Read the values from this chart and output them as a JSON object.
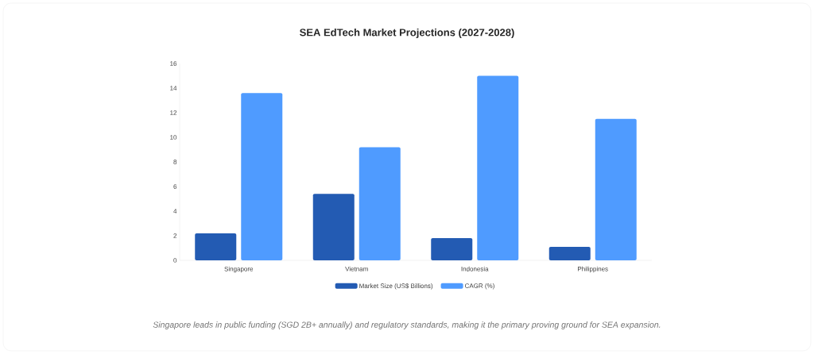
{
  "chart_data": {
    "type": "bar",
    "title": "SEA EdTech Market Projections (2027-2028)",
    "categories": [
      "Singapore",
      "Vietnam",
      "Indonesia",
      "Philippines"
    ],
    "series": [
      {
        "name": "Market Size (US$ Billions)",
        "color": "#235bb3",
        "values": [
          2.2,
          5.4,
          1.8,
          1.1
        ]
      },
      {
        "name": "CAGR (%)",
        "color": "#4f9bff",
        "values": [
          13.6,
          9.2,
          15,
          11.5
        ]
      }
    ],
    "ylim": [
      0,
      16
    ],
    "yticks": [
      0,
      2,
      4,
      6,
      8,
      10,
      12,
      14,
      16
    ],
    "grid": false,
    "legend": "bottom",
    "annotations": [
      "Singapore leads in public funding (SGD 2B+ annually) and regulatory standards, making it the primary proving ground for SEA expansion."
    ]
  }
}
